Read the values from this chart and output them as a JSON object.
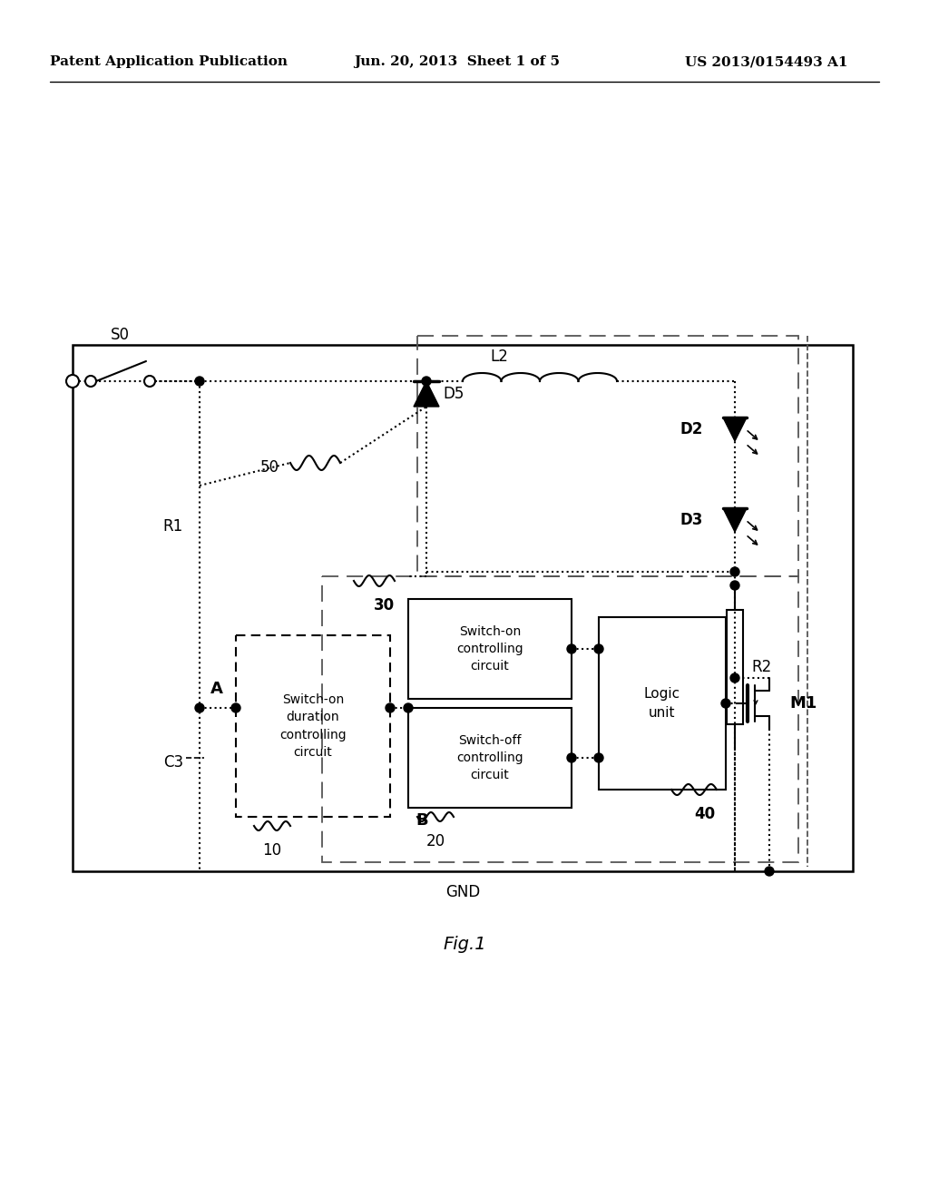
{
  "bg_color": "#ffffff",
  "header_left": "Patent Application Publication",
  "header_mid": "Jun. 20, 2013  Sheet 1 of 5",
  "header_right": "US 2013/0154493 A1",
  "fig_label": "Fig.1",
  "S0_label": "S0",
  "L2_label": "L2",
  "D2_label": "D2",
  "D3_label": "D3",
  "D5_label": "D5",
  "R1_label": "R1",
  "R2_label": "R2",
  "C3_label": "C3",
  "M1_label": "M1",
  "label_10": "10",
  "label_20": "20",
  "label_30": "30",
  "label_40": "40",
  "label_50": "50",
  "label_A": "A",
  "label_B": "B",
  "label_GND": "GND",
  "box1_text": "Switch-on\nduration\ncontrolling\ncircuit",
  "box2_text": "Switch-on\ncontrolling\ncircuit",
  "box3_text": "Switch-off\ncontrolling\ncircuit",
  "box4_text": "Logic\nunit"
}
